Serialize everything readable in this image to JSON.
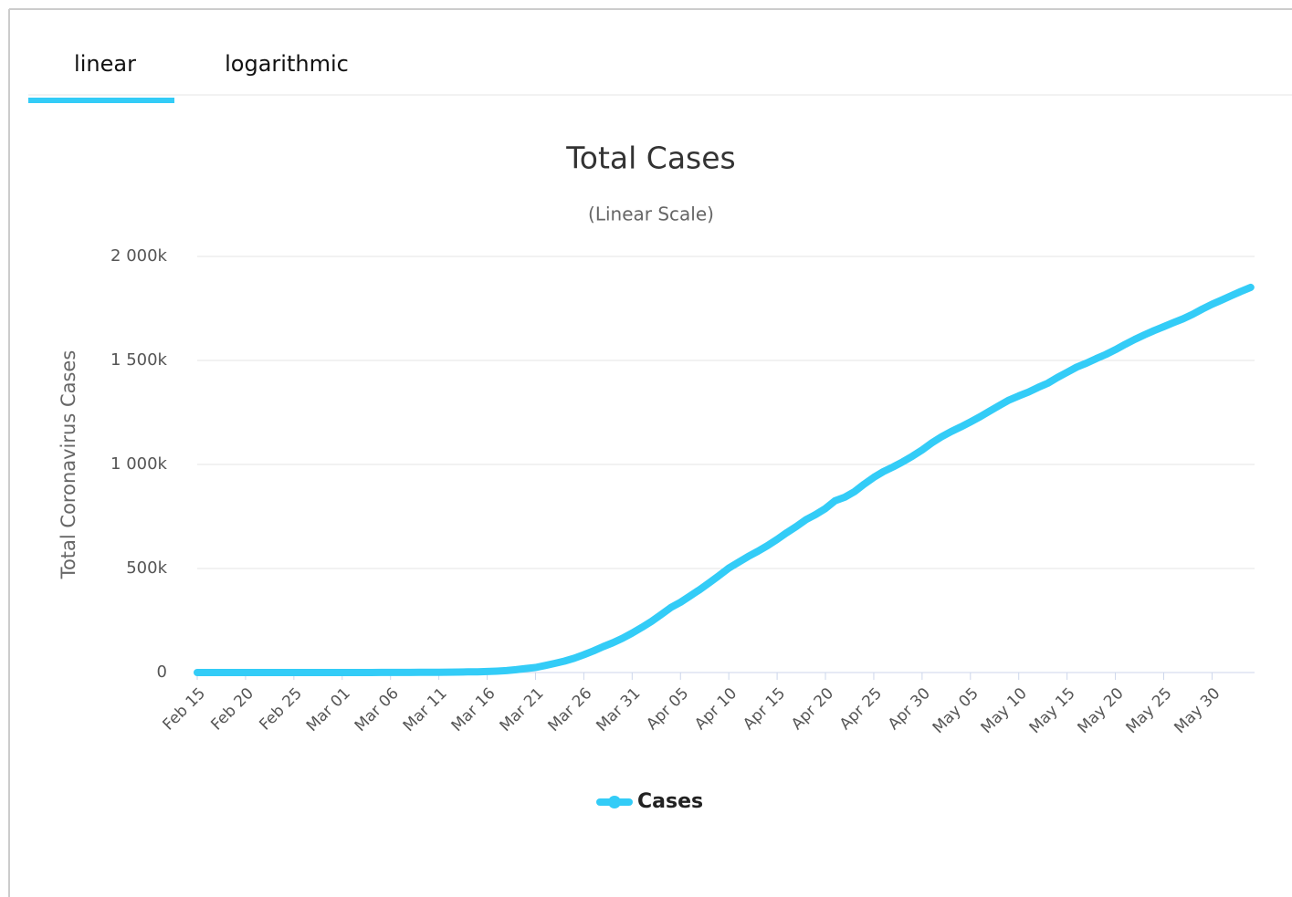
{
  "tabs": [
    "linear",
    "logarithmic"
  ],
  "chart_data": {
    "type": "line",
    "title": "Total Cases",
    "subtitle": "(Linear Scale)",
    "y_label": "Total Coronavirus Cases",
    "categories": [
      "Feb 15",
      null,
      null,
      null,
      null,
      "Feb 20",
      null,
      null,
      null,
      null,
      "Feb 25",
      null,
      null,
      null,
      null,
      "Mar 01",
      null,
      null,
      null,
      null,
      "Mar 06",
      null,
      null,
      null,
      null,
      "Mar 11",
      null,
      null,
      null,
      null,
      "Mar 16",
      null,
      null,
      null,
      null,
      "Mar 21",
      null,
      null,
      null,
      null,
      "Mar 26",
      null,
      null,
      null,
      null,
      "Mar 31",
      null,
      null,
      null,
      null,
      "Apr 05",
      null,
      null,
      null,
      null,
      "Apr 10",
      null,
      null,
      null,
      null,
      "Apr 15",
      null,
      null,
      null,
      null,
      "Apr 20",
      null,
      null,
      null,
      null,
      "Apr 25",
      null,
      null,
      null,
      null,
      "Apr 30",
      null,
      null,
      null,
      null,
      "May 05",
      null,
      null,
      null,
      null,
      "May 10",
      null,
      null,
      null,
      null,
      "May 15",
      null,
      null,
      null,
      null,
      "May 20",
      null,
      null,
      null,
      null,
      "May 25",
      null,
      null,
      null,
      null,
      "May 30",
      null,
      null,
      null,
      null
    ],
    "series": [
      {
        "name": "Cases",
        "color": "#33ccf7",
        "values": [
          15,
          15,
          15,
          15,
          15,
          15,
          15,
          35,
          35,
          53,
          57,
          60,
          60,
          62,
          68,
          75,
          100,
          124,
          158,
          221,
          319,
          435,
          541,
          704,
          994,
          1301,
          1697,
          2247,
          2943,
          3680,
          4663,
          6411,
          9197,
          13779,
          19367,
          24192,
          33592,
          43781,
          54856,
          68211,
          85435,
          104126,
          124686,
          143025,
          164620,
          189618,
          216721,
          245540,
          278458,
          312245,
          337635,
          368196,
          398809,
          432132,
          466299,
          501560,
          529951,
          557571,
          582594,
          609685,
          640014,
          672246,
          702164,
          735086,
          759786,
          787960,
          825306,
          842624,
          869172,
          905358,
          938154,
          965785,
          988197,
          1012582,
          1039909,
          1069826,
          1103461,
          1132539,
          1158040,
          1180375,
          1204351,
          1229331,
          1257023,
          1283929,
          1309550,
          1329260,
          1347881,
          1369964,
          1390406,
          1417774,
          1442824,
          1467820,
          1486757,
          1508308,
          1528568,
          1551853,
          1577147,
          1600937,
          1622612,
          1643246,
          1662302,
          1681418,
          1699933,
          1721750,
          1747087,
          1770384,
          1790172,
          1811277,
          1831821,
          1851520
        ]
      }
    ],
    "ylim": [
      0,
      2000000
    ],
    "yticks": [
      0,
      {
        "value": 500000,
        "label": "500k"
      },
      {
        "value": 1000000,
        "label": "1 000k"
      },
      {
        "value": 1500000,
        "label": "1 500k"
      },
      {
        "value": 2000000,
        "label": "2 000k"
      }
    ],
    "grid": true,
    "legend": "bottom"
  }
}
